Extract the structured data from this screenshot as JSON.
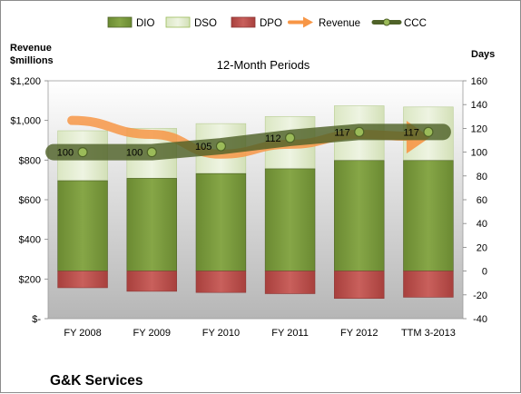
{
  "chart_data": {
    "type": "bar",
    "title": "12-Month Periods",
    "company": "G&K Services",
    "left_axis_label": [
      "Revenue",
      "$millions"
    ],
    "right_axis_label": "Days",
    "categories": [
      "FY 2008",
      "FY 2009",
      "FY 2010",
      "FY 2011",
      "FY 2012",
      "TTM 3-2013"
    ],
    "left_ticks": [
      "$-",
      "$200",
      "$400",
      "$600",
      "$800",
      "$1,000",
      "$1,200"
    ],
    "right_ticks": [
      "-40",
      "-20",
      "0",
      "20",
      "40",
      "60",
      "80",
      "100",
      "120",
      "140",
      "160"
    ],
    "ylim_left": [
      0,
      1200
    ],
    "ylim_right": [
      -40,
      160
    ],
    "grid": false,
    "legend_position": "top",
    "series": [
      {
        "name": "DIO",
        "kind": "stacked-bar",
        "axis": "right",
        "color": "#77933c",
        "values": [
          76,
          78,
          82,
          86,
          93,
          93
        ]
      },
      {
        "name": "DSO",
        "kind": "stacked-bar",
        "axis": "right",
        "color": "#d7e4bd",
        "values": [
          42,
          42,
          42,
          44,
          46,
          45
        ]
      },
      {
        "name": "DPO",
        "kind": "bar-below-zero",
        "axis": "right",
        "color": "#c0504d",
        "values": [
          -14,
          -17,
          -18,
          -19,
          -23,
          -22
        ]
      },
      {
        "name": "Revenue",
        "kind": "arrow-line",
        "axis": "left",
        "color": "#f79646",
        "values": [
          1000,
          930,
          830,
          880,
          930,
          920
        ]
      },
      {
        "name": "CCC",
        "kind": "line-markers",
        "axis": "right",
        "color": "#4f6228",
        "values": [
          100,
          100,
          105,
          112,
          117,
          117
        ]
      }
    ],
    "data_labels": [
      "100",
      "100",
      "105",
      "112",
      "117",
      "117"
    ]
  }
}
